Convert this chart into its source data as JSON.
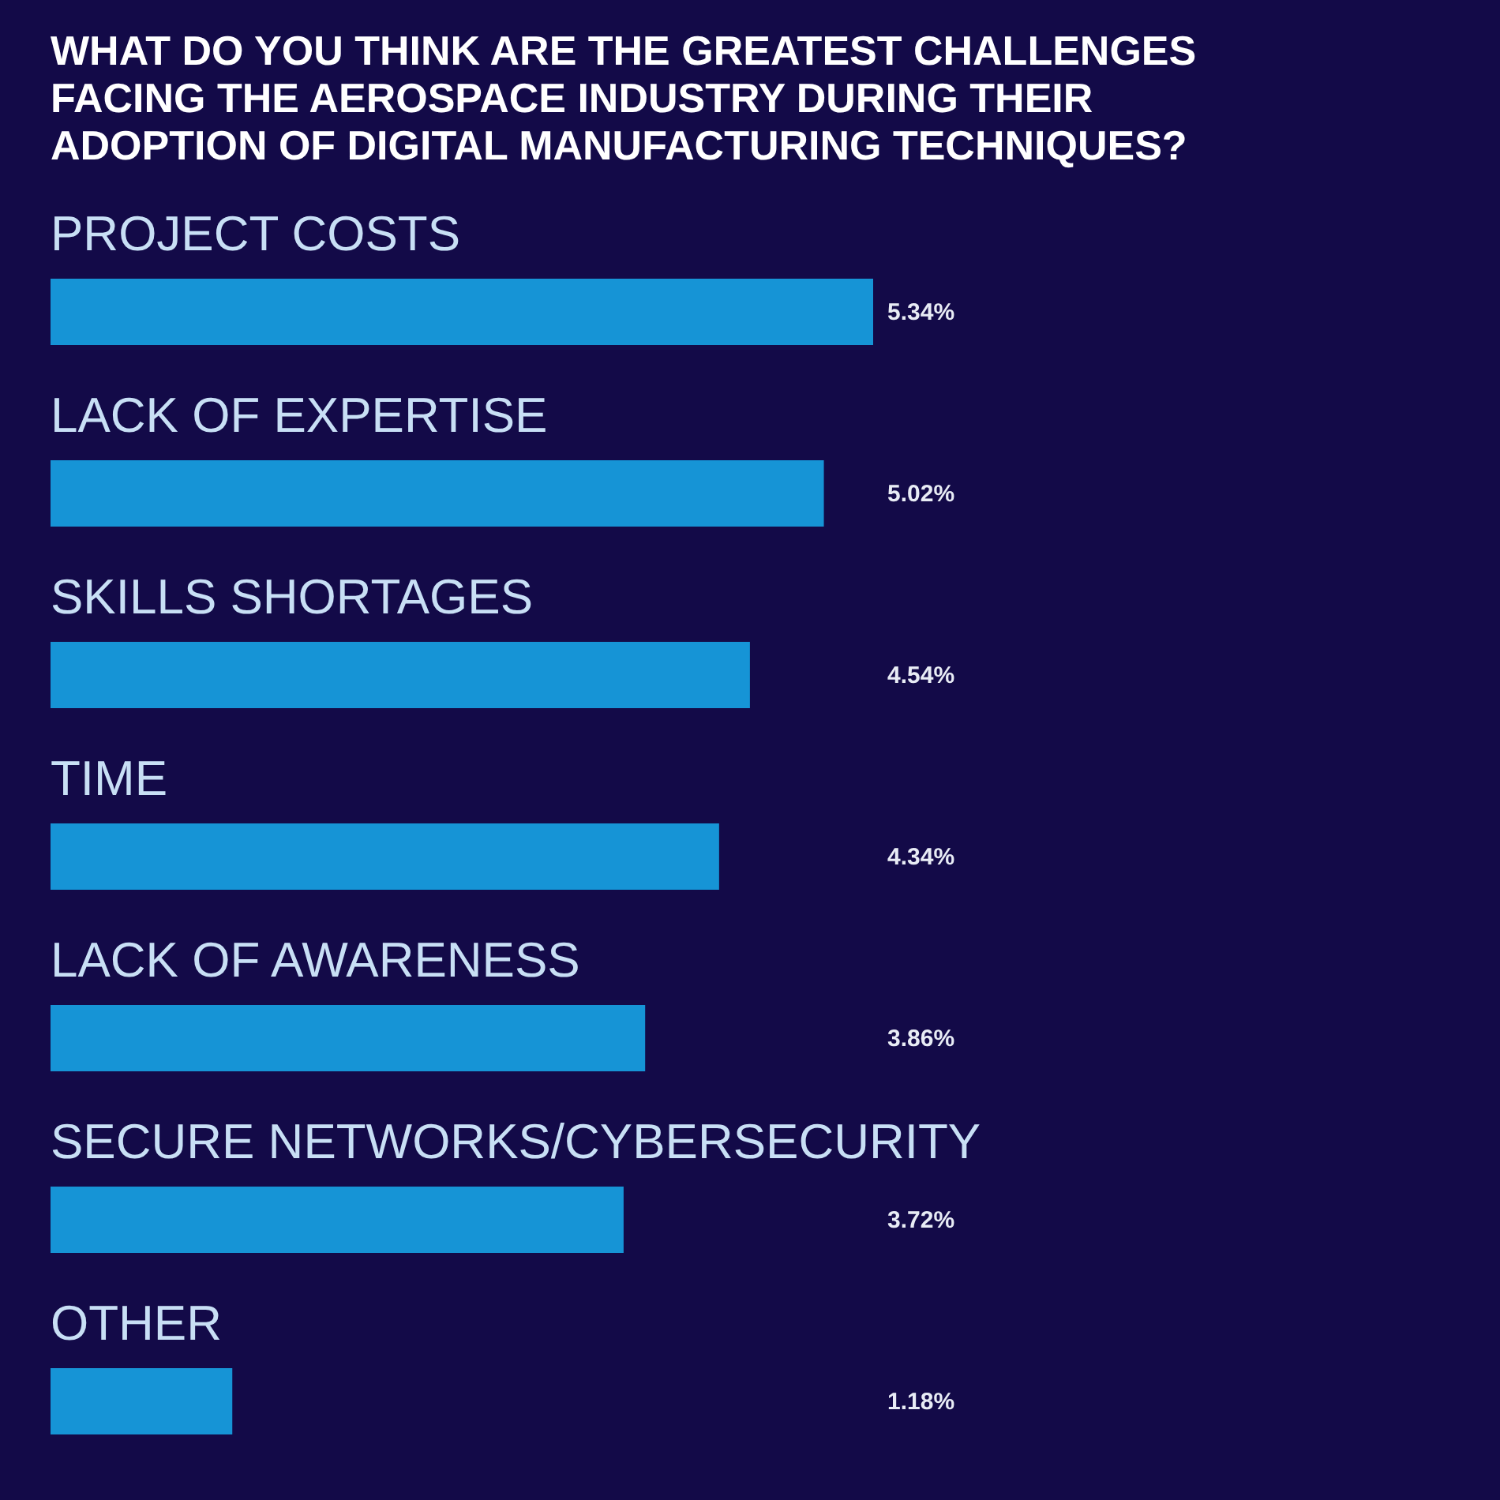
{
  "chart_data": {
    "type": "bar",
    "orientation": "horizontal",
    "title": "WHAT DO YOU THINK ARE THE GREATEST CHALLENGES FACING THE AEROSPACE INDUSTRY DURING THEIR ADOPTION OF DIGITAL MANUFACTURING TECHNIQUES?",
    "categories": [
      "PROJECT COSTS",
      "LACK OF EXPERTISE",
      "SKILLS SHORTAGES",
      "TIME",
      "LACK OF AWARENESS",
      "SECURE NETWORKS/CYBERSECURITY",
      "OTHER"
    ],
    "values": [
      5.34,
      5.02,
      4.54,
      4.34,
      3.86,
      3.72,
      1.18
    ],
    "value_labels": [
      "5.34%",
      "5.02%",
      "4.54%",
      "4.34%",
      "3.86%",
      "3.72%",
      "1.18%"
    ],
    "color": "#1694d6",
    "grid": false
  }
}
